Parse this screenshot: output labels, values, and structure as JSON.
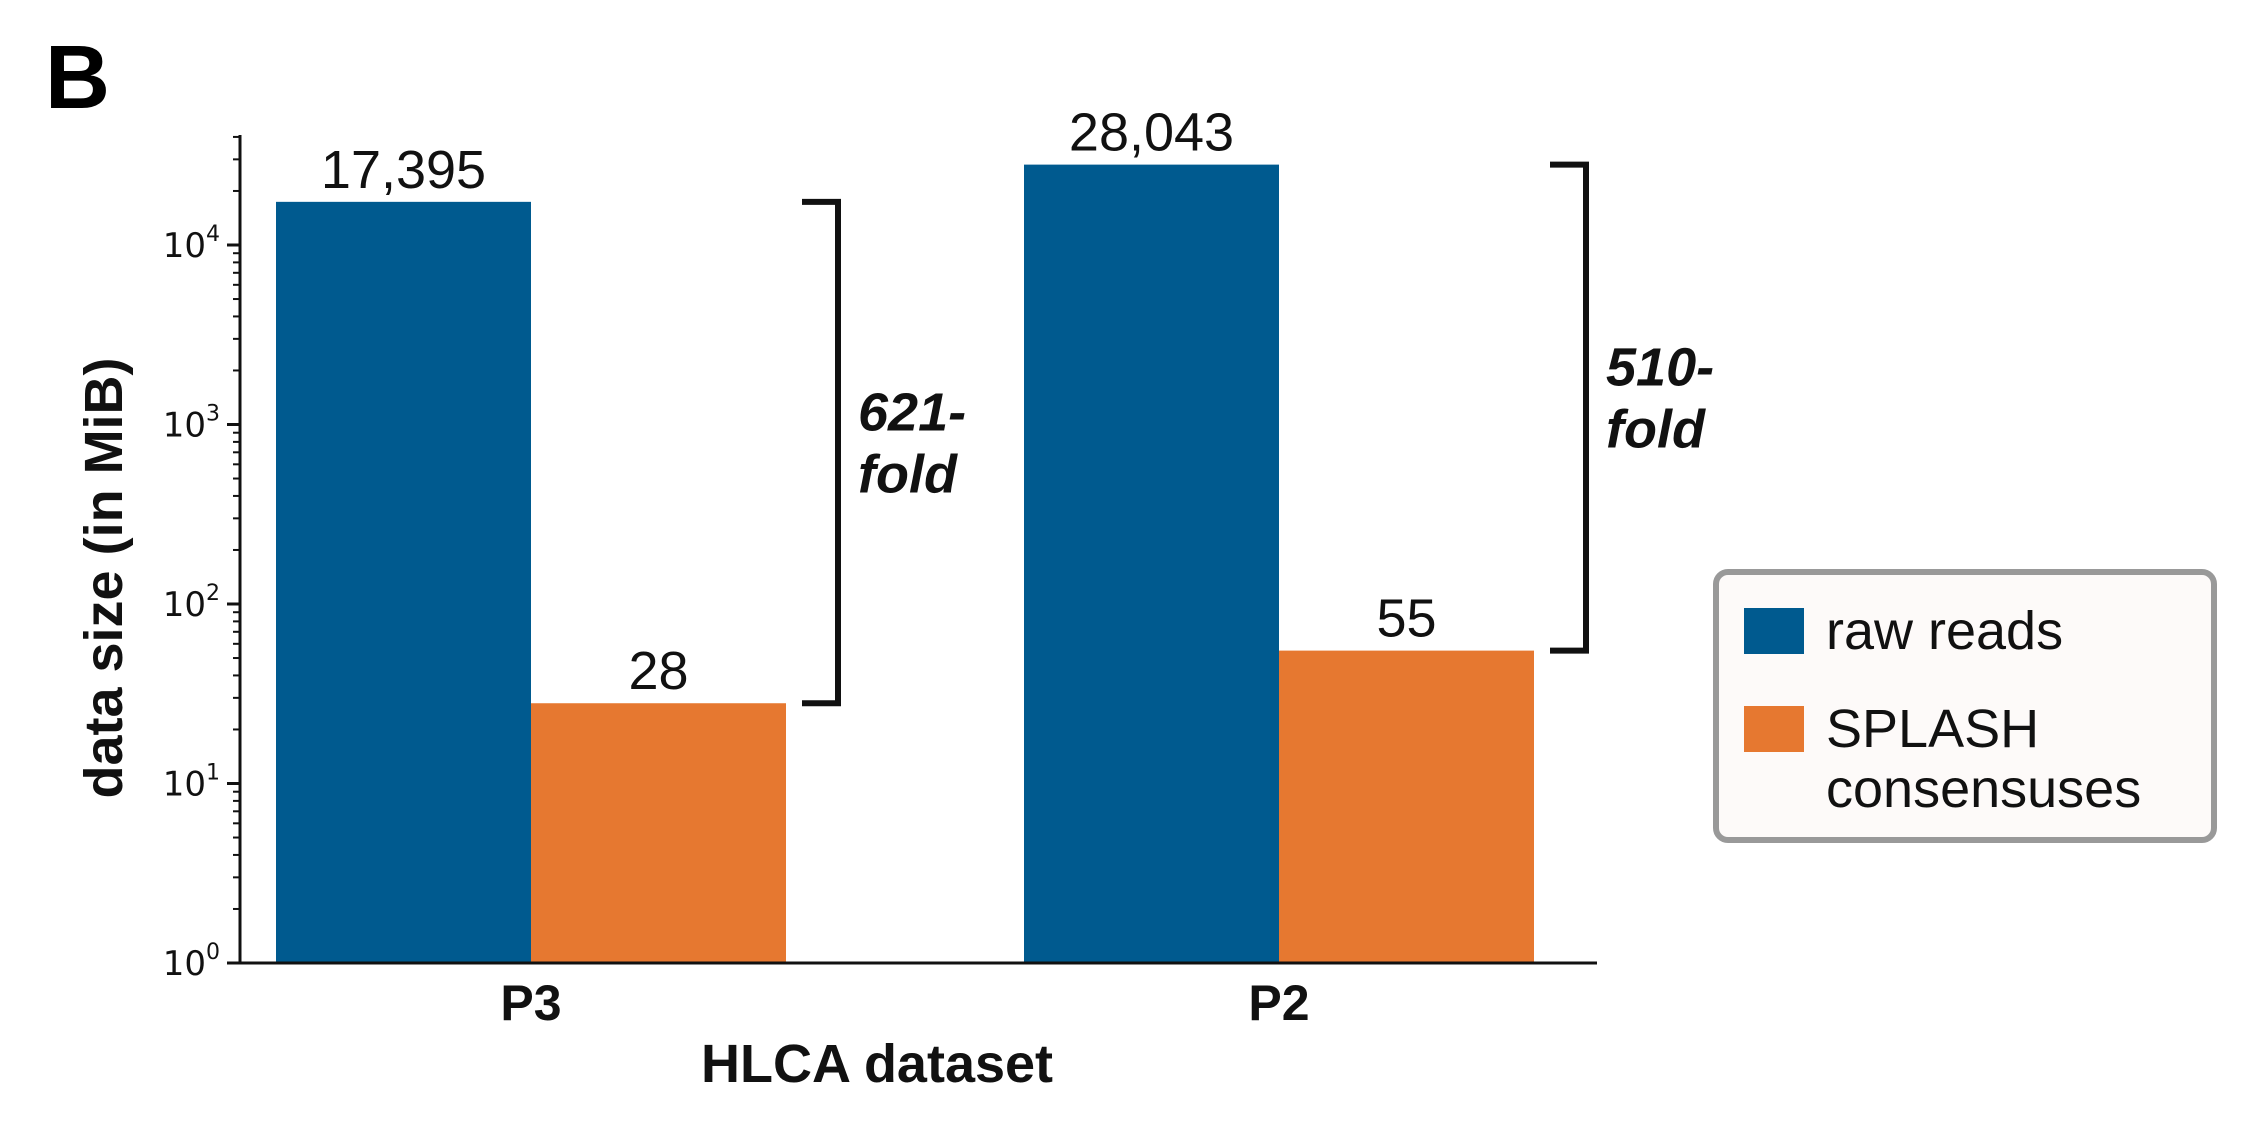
{
  "panel_letter": "B",
  "colors": {
    "raw_reads": "#005a8f",
    "splash": "#e67830",
    "axis": "#111111",
    "legend_border": "#999999",
    "legend_bg": "#fdfaf9"
  },
  "chart_data": {
    "type": "bar",
    "scale": "log",
    "categories": [
      "P3",
      "P2"
    ],
    "series": [
      {
        "name": "raw reads",
        "values": [
          17395,
          28043
        ],
        "labels": [
          "17,395",
          "28,043"
        ]
      },
      {
        "name": "SPLASH consensuses",
        "values": [
          28,
          55
        ],
        "labels": [
          "28",
          "55"
        ]
      }
    ],
    "fold_changes": [
      {
        "category": "P3",
        "line1": "621-",
        "line2": "fold"
      },
      {
        "category": "P2",
        "line1": "510-",
        "line2": "fold"
      }
    ],
    "ylim": [
      1,
      40000
    ],
    "yticks": [
      {
        "value": 1,
        "base": "10",
        "exp": "0"
      },
      {
        "value": 10,
        "base": "10",
        "exp": "1"
      },
      {
        "value": 100,
        "base": "10",
        "exp": "2"
      },
      {
        "value": 1000,
        "base": "10",
        "exp": "3"
      },
      {
        "value": 10000,
        "base": "10",
        "exp": "4"
      }
    ],
    "xlabel": "HLCA dataset",
    "ylabel": "data size (in MiB)",
    "legend": {
      "placement": "right",
      "entries": [
        {
          "lines": [
            "raw reads"
          ]
        },
        {
          "lines": [
            "SPLASH",
            "consensuses"
          ]
        }
      ]
    }
  }
}
